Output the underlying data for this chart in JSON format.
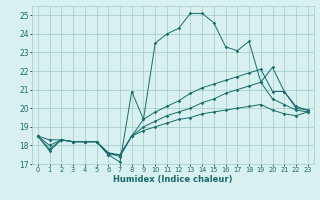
{
  "xlabel": "Humidex (Indice chaleur)",
  "x_values": [
    0,
    1,
    2,
    3,
    4,
    5,
    6,
    7,
    8,
    9,
    10,
    11,
    12,
    13,
    14,
    15,
    16,
    17,
    18,
    19,
    20,
    21,
    22,
    23
  ],
  "line1": [
    18.5,
    17.7,
    18.3,
    18.2,
    18.2,
    18.2,
    17.5,
    17.1,
    20.9,
    19.4,
    23.5,
    24.0,
    24.3,
    25.1,
    25.1,
    24.6,
    23.3,
    23.1,
    23.6,
    21.4,
    22.2,
    20.9,
    20.1,
    19.9
  ],
  "line2": [
    18.5,
    18.3,
    18.3,
    18.2,
    18.2,
    18.2,
    17.5,
    17.5,
    18.5,
    19.4,
    19.8,
    20.1,
    20.4,
    20.8,
    21.1,
    21.3,
    21.5,
    21.7,
    21.9,
    22.1,
    20.9,
    20.9,
    20.0,
    19.9
  ],
  "line3": [
    18.5,
    18.0,
    18.3,
    18.2,
    18.2,
    18.2,
    17.6,
    17.5,
    18.5,
    19.0,
    19.3,
    19.6,
    19.8,
    20.0,
    20.3,
    20.5,
    20.8,
    21.0,
    21.2,
    21.4,
    20.5,
    20.2,
    19.9,
    19.8
  ],
  "line4": [
    18.5,
    17.8,
    18.3,
    18.2,
    18.2,
    18.2,
    17.6,
    17.4,
    18.5,
    18.8,
    19.0,
    19.2,
    19.4,
    19.5,
    19.7,
    19.8,
    19.9,
    20.0,
    20.1,
    20.2,
    19.9,
    19.7,
    19.6,
    19.8
  ],
  "line_color": "#1a6b6b",
  "bg_color": "#d8f0f0",
  "grid_color": "#a0c8c8",
  "ylim": [
    17,
    25.5
  ],
  "xlim": [
    -0.5,
    23.5
  ],
  "yticks": [
    17,
    18,
    19,
    20,
    21,
    22,
    23,
    24,
    25
  ],
  "xtick_labels": [
    "0",
    "1",
    "2",
    "3",
    "4",
    "5",
    "6",
    "7",
    "8",
    "9",
    "10",
    "11",
    "12",
    "13",
    "14",
    "15",
    "16",
    "17",
    "18",
    "19",
    "20",
    "21",
    "22",
    "23"
  ]
}
